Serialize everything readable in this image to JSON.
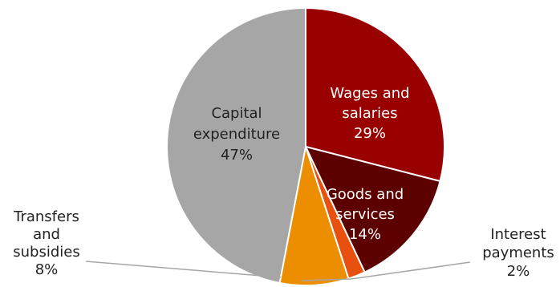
{
  "chart_data": {
    "type": "pie",
    "title": "",
    "start_angle_deg": 0,
    "direction": "clockwise",
    "slices": [
      {
        "label": "Wages and salaries",
        "label_lines": [
          "Wages and",
          "salaries"
        ],
        "percent_text": "29%",
        "value": 29,
        "color": "#990000",
        "text_color": "#ffffff",
        "label_position": "inside"
      },
      {
        "label": "Goods and services",
        "label_lines": [
          "Goods and",
          "services"
        ],
        "percent_text": "14%",
        "value": 14,
        "color": "#5c0000",
        "text_color": "#ffffff",
        "label_position": "inside"
      },
      {
        "label": "Interest payments",
        "label_lines": [
          "Interest",
          "payments"
        ],
        "percent_text": "2%",
        "value": 2,
        "color": "#e8500f",
        "text_color": "#222222",
        "label_position": "outside-right"
      },
      {
        "label": "Transfers and subsidies",
        "label_lines": [
          "Transfers",
          "and",
          "subsidies"
        ],
        "percent_text": "8%",
        "value": 8,
        "color": "#ed8d00",
        "text_color": "#222222",
        "label_position": "outside-left"
      },
      {
        "label": "Capital expenditure",
        "label_lines": [
          "Capital",
          "expenditure"
        ],
        "percent_text": "47%",
        "value": 47,
        "color": "#a6a6a6",
        "text_color": "#222222",
        "label_position": "inside"
      }
    ]
  }
}
